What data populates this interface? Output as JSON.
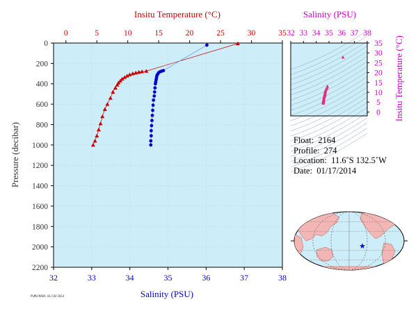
{
  "chart_data": [
    {
      "type": "scatter",
      "title": "",
      "top_axis": {
        "label": "Insitu Temperature (°C)",
        "range": [
          -2,
          35
        ],
        "ticks": [
          0,
          5,
          10,
          15,
          20,
          25,
          30,
          35
        ],
        "color": "#cc0000"
      },
      "bottom_axis": {
        "label": "Salinity (PSU)",
        "range": [
          32,
          38
        ],
        "ticks": [
          32,
          33,
          34,
          35,
          36,
          37,
          38
        ],
        "color": "#0000cc"
      },
      "left_axis": {
        "label": "Pressure (decibar)",
        "range": [
          0,
          2200
        ],
        "reversed": true,
        "ticks": [
          0,
          200,
          400,
          600,
          800,
          1000,
          1200,
          1400,
          1600,
          1800,
          2000,
          2200
        ],
        "color": "#333333"
      },
      "series": [
        {
          "marker": "triangle",
          "color": "#cc0000",
          "axis": "top",
          "points": [
            {
              "x": 27.8,
              "y": 5
            },
            {
              "x": 13.0,
              "y": 275
            },
            {
              "x": 12.3,
              "y": 280
            },
            {
              "x": 11.8,
              "y": 285
            },
            {
              "x": 11.3,
              "y": 292
            },
            {
              "x": 10.8,
              "y": 300
            },
            {
              "x": 10.3,
              "y": 310
            },
            {
              "x": 9.9,
              "y": 322
            },
            {
              "x": 9.5,
              "y": 336
            },
            {
              "x": 9.1,
              "y": 352
            },
            {
              "x": 8.8,
              "y": 370
            },
            {
              "x": 8.5,
              "y": 390
            },
            {
              "x": 8.3,
              "y": 410
            },
            {
              "x": 8.0,
              "y": 440
            },
            {
              "x": 7.6,
              "y": 480
            },
            {
              "x": 7.2,
              "y": 540
            },
            {
              "x": 6.7,
              "y": 600
            },
            {
              "x": 6.3,
              "y": 650
            },
            {
              "x": 5.9,
              "y": 720
            },
            {
              "x": 5.6,
              "y": 790
            },
            {
              "x": 5.3,
              "y": 850
            },
            {
              "x": 5.0,
              "y": 910
            },
            {
              "x": 4.7,
              "y": 960
            },
            {
              "x": 4.4,
              "y": 1000
            }
          ]
        },
        {
          "marker": "circle",
          "color": "#0000cc",
          "axis": "bottom",
          "points": [
            {
              "x": 36.02,
              "y": 20
            },
            {
              "x": 34.88,
              "y": 270
            },
            {
              "x": 34.84,
              "y": 275
            },
            {
              "x": 34.8,
              "y": 280
            },
            {
              "x": 34.76,
              "y": 290
            },
            {
              "x": 34.73,
              "y": 305
            },
            {
              "x": 34.71,
              "y": 320
            },
            {
              "x": 34.7,
              "y": 340
            },
            {
              "x": 34.69,
              "y": 360
            },
            {
              "x": 34.68,
              "y": 380
            },
            {
              "x": 34.67,
              "y": 400
            },
            {
              "x": 34.66,
              "y": 440
            },
            {
              "x": 34.65,
              "y": 480
            },
            {
              "x": 34.64,
              "y": 520
            },
            {
              "x": 34.62,
              "y": 560
            },
            {
              "x": 34.61,
              "y": 610
            },
            {
              "x": 34.6,
              "y": 660
            },
            {
              "x": 34.59,
              "y": 710
            },
            {
              "x": 34.58,
              "y": 760
            },
            {
              "x": 34.57,
              "y": 810
            },
            {
              "x": 34.56,
              "y": 860
            },
            {
              "x": 34.56,
              "y": 910
            },
            {
              "x": 34.55,
              "y": 960
            },
            {
              "x": 34.55,
              "y": 1000
            }
          ]
        }
      ]
    },
    {
      "type": "scatter",
      "title": "",
      "top_axis": {
        "label": "Salinity (PSU)",
        "range": [
          32,
          38
        ],
        "ticks": [
          32,
          33,
          34,
          35,
          36,
          37,
          38
        ],
        "color": "#cc00cc"
      },
      "right_axis": {
        "label": "Insitu Temperature (°C)",
        "range": [
          -2,
          35
        ],
        "ticks": [
          0,
          5,
          10,
          15,
          20,
          25,
          30,
          35
        ],
        "color": "#cc00cc"
      },
      "series": [
        {
          "marker": "triangle",
          "color": "#e0307a",
          "points": [
            {
              "x": 36.1,
              "y": 27.8
            },
            {
              "x": 34.88,
              "y": 13.0
            },
            {
              "x": 34.84,
              "y": 12.3
            },
            {
              "x": 34.8,
              "y": 11.8
            },
            {
              "x": 34.76,
              "y": 11.3
            },
            {
              "x": 34.73,
              "y": 10.8
            },
            {
              "x": 34.71,
              "y": 10.3
            },
            {
              "x": 34.7,
              "y": 9.9
            },
            {
              "x": 34.69,
              "y": 9.5
            },
            {
              "x": 34.68,
              "y": 9.1
            },
            {
              "x": 34.67,
              "y": 8.8
            },
            {
              "x": 34.66,
              "y": 8.5
            },
            {
              "x": 34.65,
              "y": 8.3
            },
            {
              "x": 34.64,
              "y": 8.0
            },
            {
              "x": 34.62,
              "y": 7.6
            },
            {
              "x": 34.61,
              "y": 7.2
            },
            {
              "x": 34.6,
              "y": 6.7
            },
            {
              "x": 34.59,
              "y": 6.3
            },
            {
              "x": 34.58,
              "y": 5.9
            },
            {
              "x": 34.57,
              "y": 5.6
            },
            {
              "x": 34.56,
              "y": 5.3
            },
            {
              "x": 34.56,
              "y": 5.0
            },
            {
              "x": 34.55,
              "y": 4.7
            },
            {
              "x": 34.55,
              "y": 4.4
            }
          ]
        }
      ]
    }
  ],
  "info": {
    "float_label": "Float:",
    "float_value": "2164",
    "profile_label": "Profile:",
    "profile_value": "274",
    "location_label": "Location:",
    "location_value": "11.6˚S  132.5˚W",
    "date_label": "Date:",
    "date_value": "01/17/2014"
  },
  "colors": {
    "plot_bg": "#cdeef8",
    "temperature": "#cc0000",
    "salinity": "#0000cc",
    "ts_accent": "#cc00cc",
    "axis_text": "#333333"
  },
  "map": {
    "marker_icon": "star-icon",
    "marker_color": "#0000cc"
  },
  "stamp": "PGMO/NOAA 01/20/2014"
}
